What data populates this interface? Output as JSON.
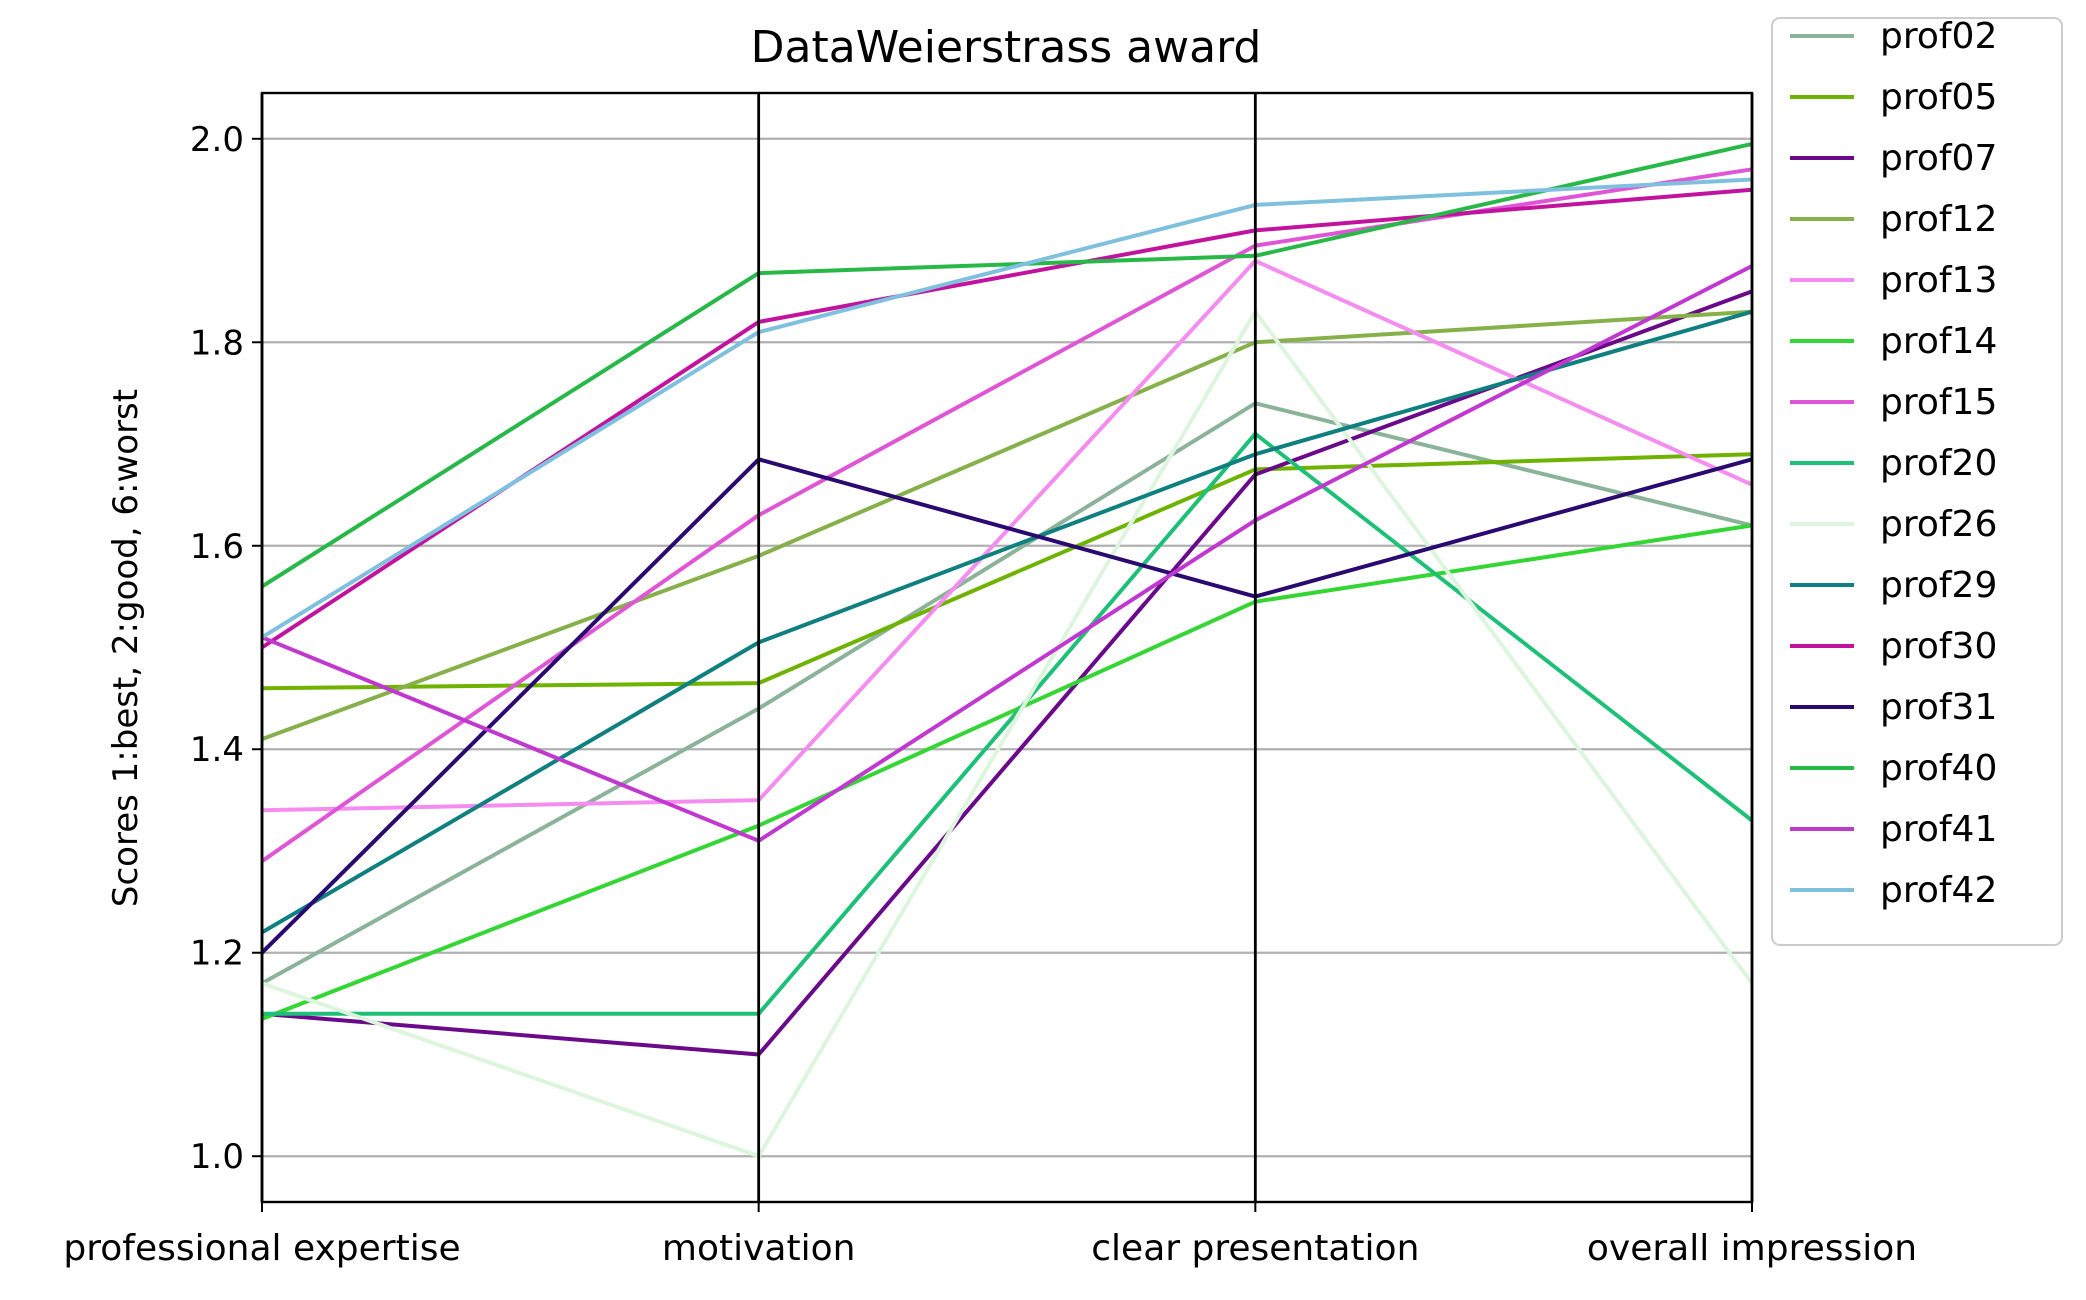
{
  "chart_data": {
    "type": "line",
    "subtype": "parallel-coordinates",
    "title": "DataWeierstrass award",
    "xlabel": "",
    "ylabel": "Scores 1:best, 2:good, 6:worst",
    "ylim": [
      0.955,
      2.045
    ],
    "yticks": [
      1.0,
      1.2,
      1.4,
      1.6,
      1.8,
      2.0
    ],
    "ytick_labels": [
      "1.0",
      "1.2",
      "1.4",
      "1.6",
      "1.8",
      "2.0"
    ],
    "grid": "horizontal",
    "legend_position": "outside-right",
    "categories": [
      "professional expertise",
      "motivation",
      "clear presentation",
      "overall impression"
    ],
    "series": [
      {
        "name": "prof02",
        "color": "#8bb39a",
        "values": [
          1.17,
          1.44,
          1.74,
          1.62
        ]
      },
      {
        "name": "prof05",
        "color": "#6fb300",
        "values": [
          1.46,
          1.465,
          1.675,
          1.69
        ]
      },
      {
        "name": "prof07",
        "color": "#6a0a8a",
        "values": [
          1.14,
          1.1,
          1.67,
          1.85
        ]
      },
      {
        "name": "prof12",
        "color": "#86b04a",
        "values": [
          1.41,
          1.59,
          1.8,
          1.83
        ]
      },
      {
        "name": "prof13",
        "color": "#f58cf0",
        "values": [
          1.34,
          1.35,
          1.88,
          1.66
        ]
      },
      {
        "name": "prof14",
        "color": "#33d633",
        "values": [
          1.135,
          1.325,
          1.545,
          1.62
        ]
      },
      {
        "name": "prof15",
        "color": "#e055d6",
        "values": [
          1.29,
          1.63,
          1.895,
          1.97
        ]
      },
      {
        "name": "prof20",
        "color": "#1ec077",
        "values": [
          1.14,
          1.14,
          1.71,
          1.33
        ]
      },
      {
        "name": "prof26",
        "color": "#ddf5dd",
        "values": [
          1.17,
          1.0,
          1.83,
          1.17
        ]
      },
      {
        "name": "prof29",
        "color": "#0f7f7f",
        "values": [
          1.22,
          1.505,
          1.69,
          1.83
        ]
      },
      {
        "name": "prof30",
        "color": "#c2139e",
        "values": [
          1.5,
          1.82,
          1.91,
          1.95
        ]
      },
      {
        "name": "prof31",
        "color": "#2a0a70",
        "values": [
          1.2,
          1.685,
          1.55,
          1.685
        ]
      },
      {
        "name": "prof40",
        "color": "#28b848",
        "values": [
          1.56,
          1.868,
          1.885,
          1.995
        ]
      },
      {
        "name": "prof41",
        "color": "#c038d0",
        "values": [
          1.51,
          1.31,
          1.625,
          1.875
        ]
      },
      {
        "name": "prof42",
        "color": "#7fc0de",
        "values": [
          1.51,
          1.81,
          1.935,
          1.96
        ]
      }
    ]
  }
}
